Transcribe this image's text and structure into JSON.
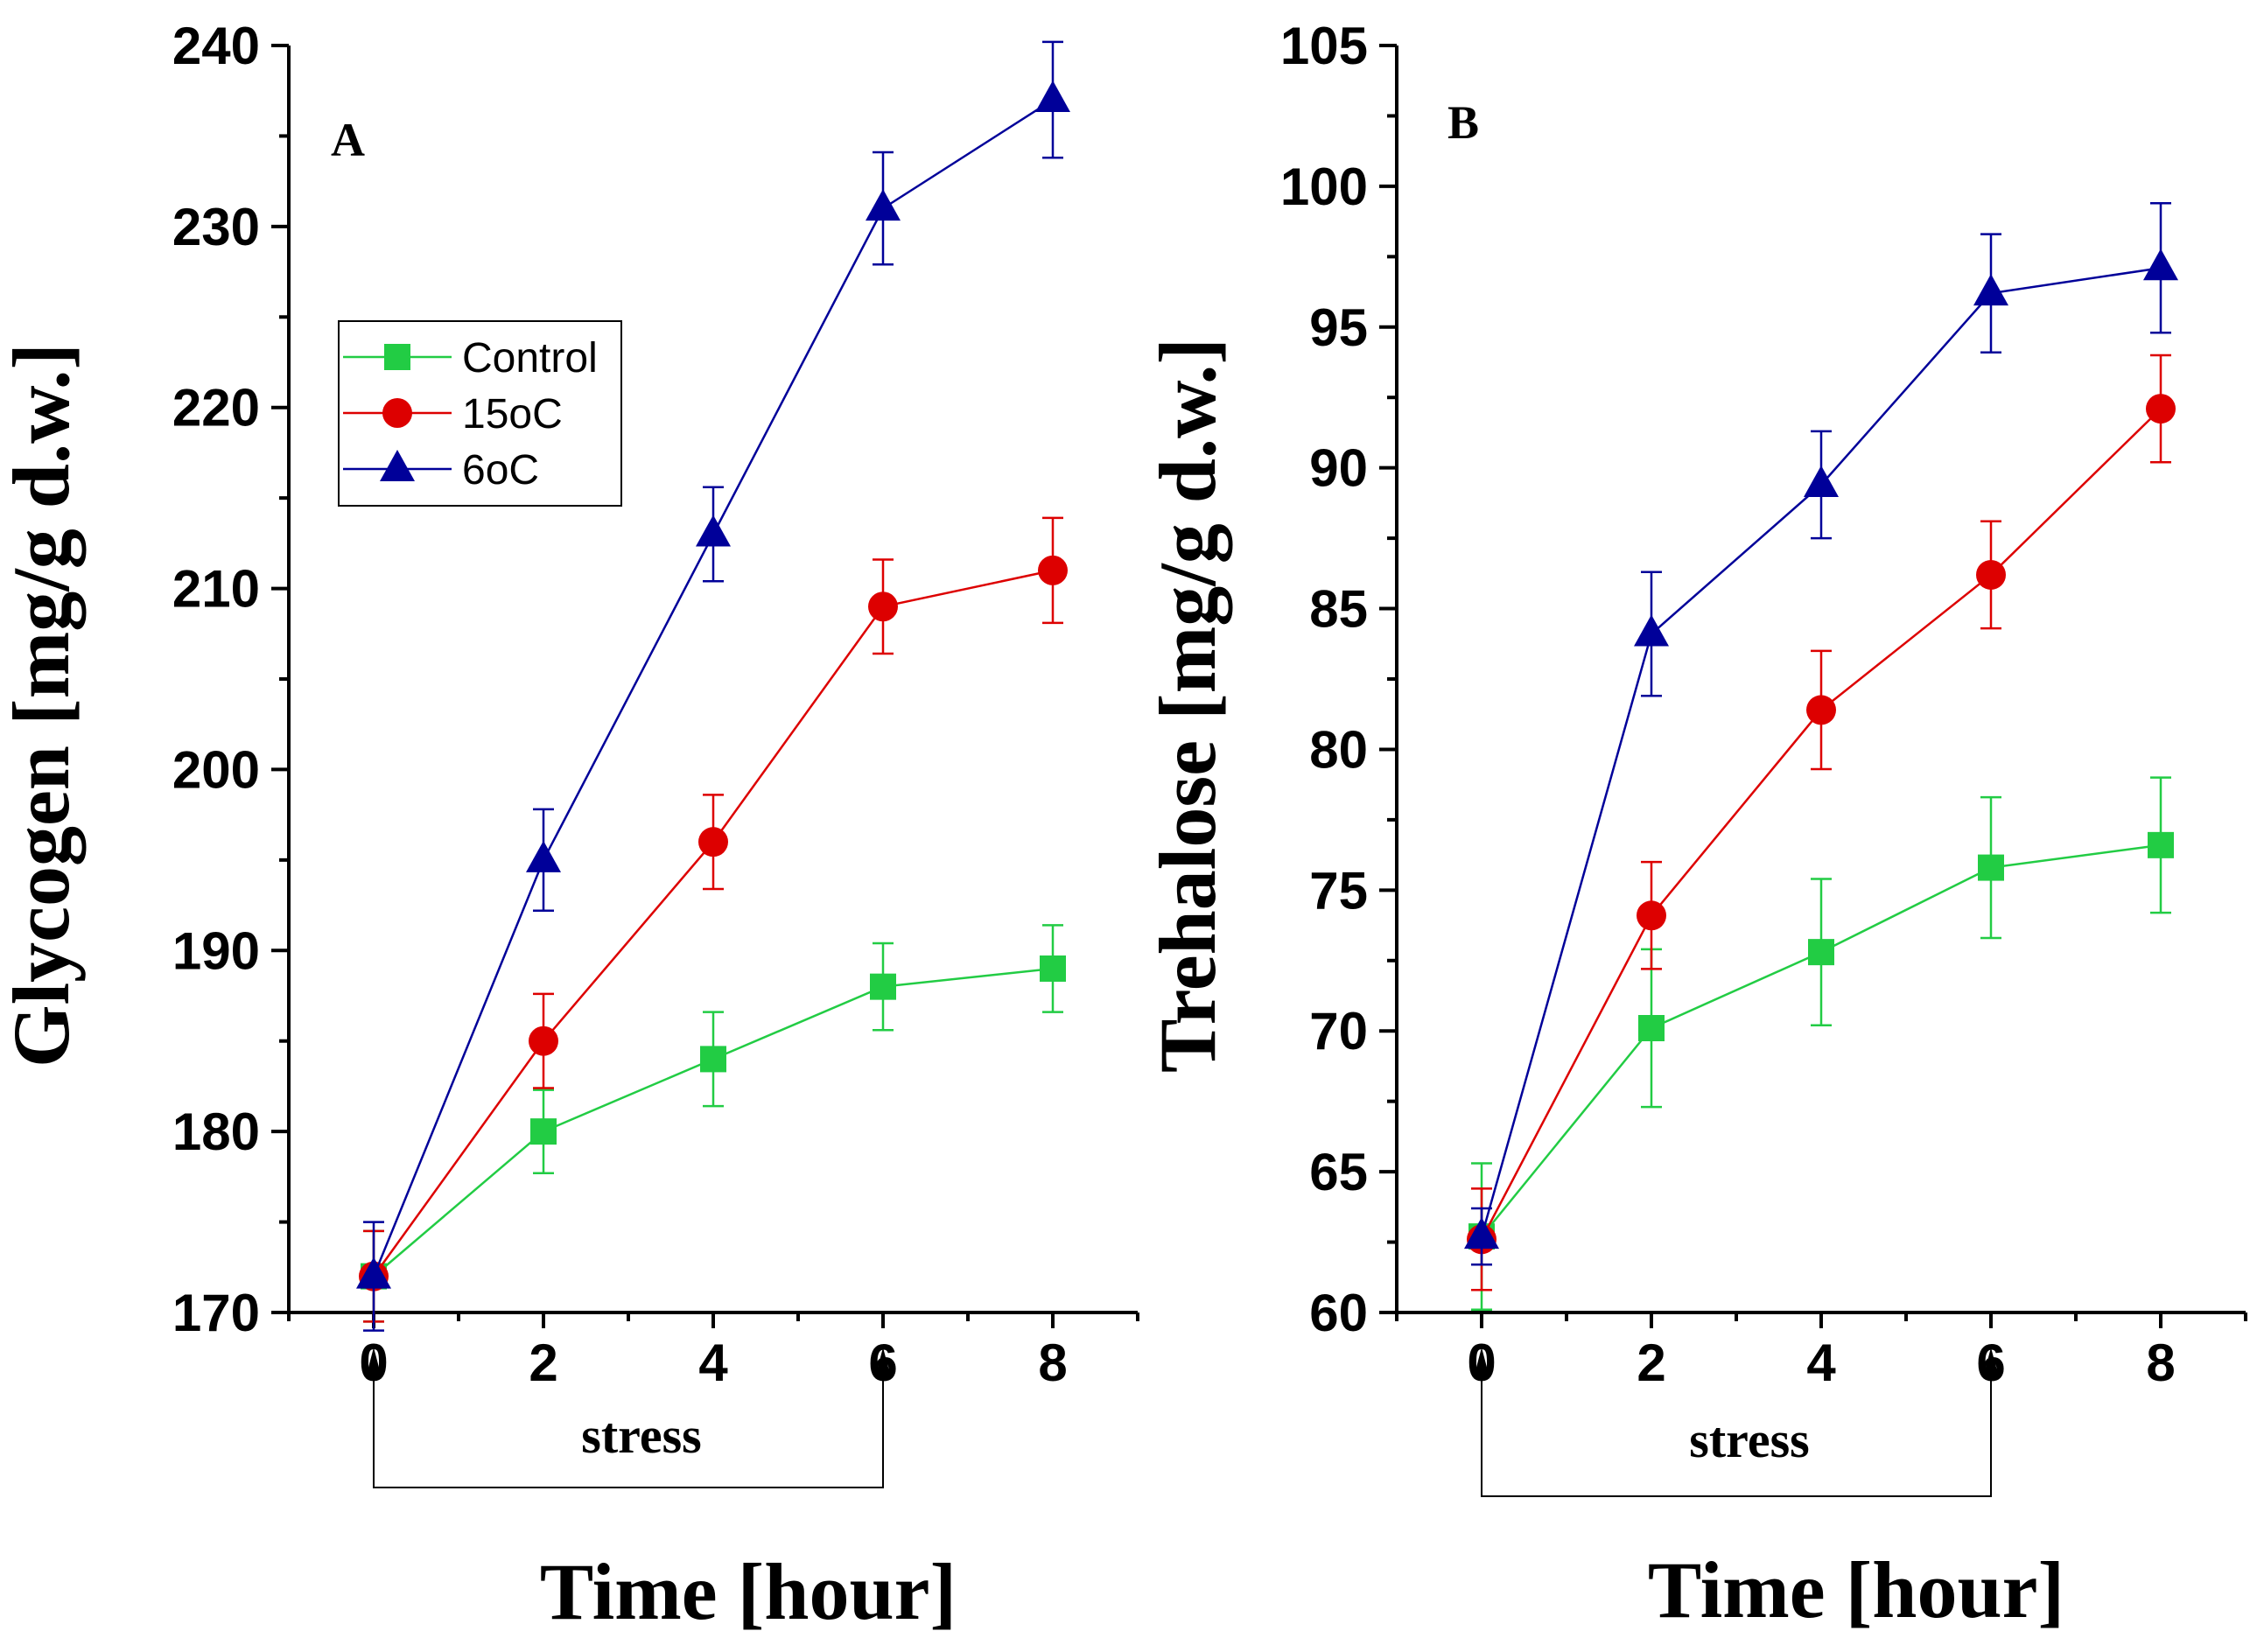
{
  "colors": {
    "control": "#22cc44",
    "c15": "#dd0000",
    "c6": "#000099",
    "axis": "#000000"
  },
  "legend": {
    "entries": [
      {
        "label": "Control",
        "marker": "square",
        "color": "#22cc44"
      },
      {
        "label": "15oC",
        "marker": "circle",
        "color": "#dd0000"
      },
      {
        "label": "6oC",
        "marker": "triangle",
        "color": "#000099"
      }
    ]
  },
  "chart_data": [
    {
      "type": "line",
      "panel": "A",
      "xlabel": "Time [hour]",
      "ylabel": "Glycogen [mg/g d.w.]",
      "xlim": [
        -1,
        9
      ],
      "ylim": [
        170,
        240
      ],
      "xticks": [
        0,
        2,
        4,
        6,
        8
      ],
      "yticks": [
        170,
        180,
        190,
        200,
        210,
        220,
        230,
        240
      ],
      "annotation": {
        "text": "stress",
        "from": 0,
        "to": 6
      },
      "x": [
        0,
        2,
        4,
        6,
        8
      ],
      "series": [
        {
          "name": "Control",
          "values": [
            172,
            180,
            184,
            188,
            189
          ],
          "errors": [
            2.5,
            2.3,
            2.6,
            2.4,
            2.4
          ]
        },
        {
          "name": "15oC",
          "values": [
            172,
            185,
            196,
            209,
            211
          ],
          "errors": [
            2.5,
            2.6,
            2.6,
            2.6,
            2.9
          ]
        },
        {
          "name": "6oC",
          "values": [
            172,
            195,
            213,
            231,
            237
          ],
          "errors": [
            3.0,
            2.8,
            2.6,
            3.1,
            3.2
          ]
        }
      ]
    },
    {
      "type": "line",
      "panel": "B",
      "xlabel": "Time [hour]",
      "ylabel": "Trehalose [mg/g d.w.]",
      "xlim": [
        -1,
        9
      ],
      "ylim": [
        60,
        105
      ],
      "xticks": [
        0,
        2,
        4,
        6,
        8
      ],
      "yticks": [
        60,
        65,
        70,
        75,
        80,
        85,
        90,
        95,
        100,
        105
      ],
      "annotation": {
        "text": "stress",
        "from": 0,
        "to": 6
      },
      "x": [
        0,
        2,
        4,
        6,
        8
      ],
      "series": [
        {
          "name": "Control",
          "values": [
            62.7,
            70.1,
            72.8,
            75.8,
            76.6
          ],
          "errors": [
            2.6,
            2.8,
            2.6,
            2.5,
            2.4
          ]
        },
        {
          "name": "15oC",
          "values": [
            62.6,
            74.1,
            81.4,
            86.2,
            92.1
          ],
          "errors": [
            1.8,
            1.9,
            2.1,
            1.9,
            1.9
          ]
        },
        {
          "name": "6oC",
          "values": [
            62.7,
            84.1,
            89.4,
            96.2,
            97.1
          ],
          "errors": [
            1.0,
            2.2,
            1.9,
            2.1,
            2.3
          ]
        }
      ]
    }
  ]
}
